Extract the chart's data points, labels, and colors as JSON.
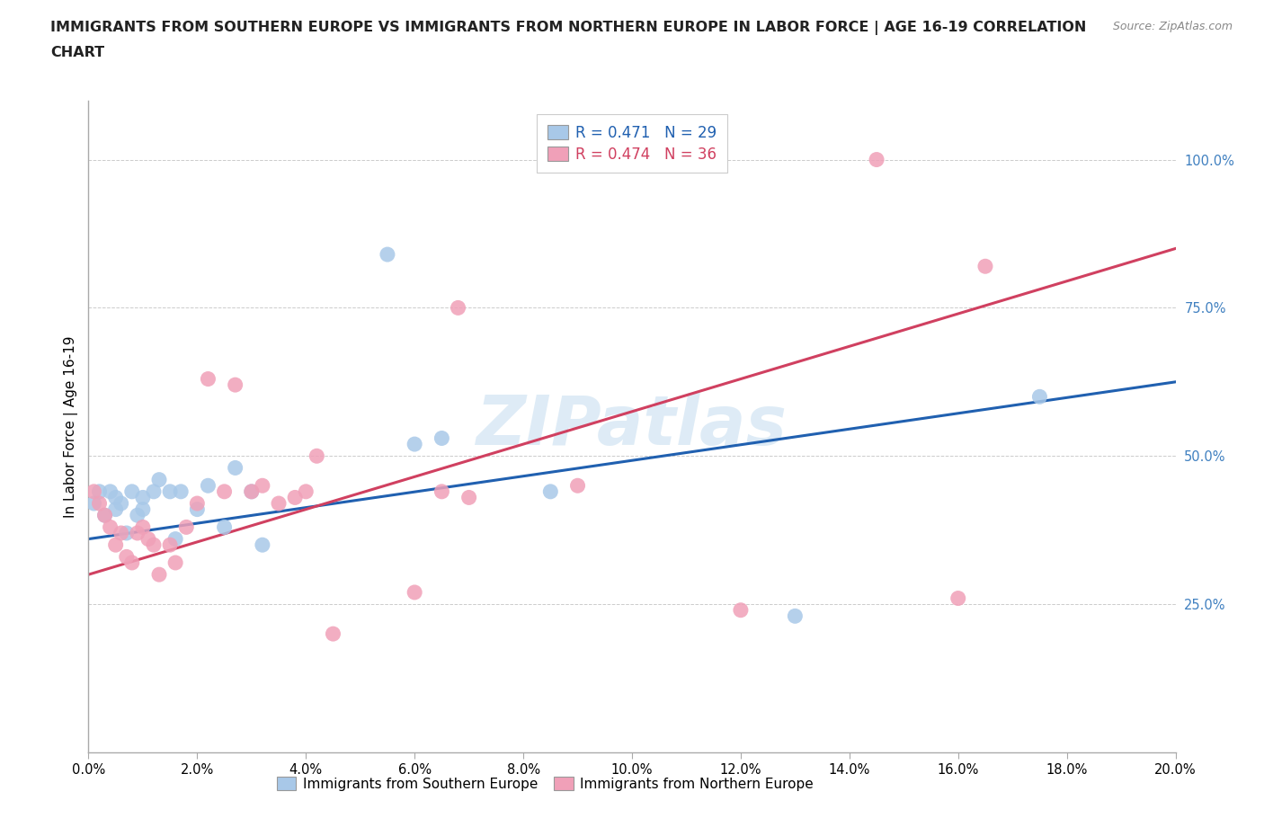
{
  "title_line1": "IMMIGRANTS FROM SOUTHERN EUROPE VS IMMIGRANTS FROM NORTHERN EUROPE IN LABOR FORCE | AGE 16-19 CORRELATION",
  "title_line2": "CHART",
  "source": "Source: ZipAtlas.com",
  "ylabel": "In Labor Force | Age 16-19",
  "xlim": [
    0.0,
    0.2
  ],
  "ylim": [
    0.0,
    1.1
  ],
  "xticks": [
    0.0,
    0.02,
    0.04,
    0.06,
    0.08,
    0.1,
    0.12,
    0.14,
    0.16,
    0.18,
    0.2
  ],
  "yticks": [
    0.25,
    0.5,
    0.75,
    1.0
  ],
  "blue_R": 0.471,
  "blue_N": 29,
  "pink_R": 0.474,
  "pink_N": 36,
  "blue_color": "#a8c8e8",
  "pink_color": "#f0a0b8",
  "blue_line_color": "#2060b0",
  "pink_line_color": "#d04060",
  "ytick_color": "#4080c0",
  "watermark_color": "#c8dff0",
  "blue_legend_label": "Immigrants from Southern Europe",
  "pink_legend_label": "Immigrants from Northern Europe",
  "blue_scatter_x": [
    0.001,
    0.002,
    0.003,
    0.004,
    0.005,
    0.005,
    0.006,
    0.007,
    0.008,
    0.009,
    0.01,
    0.01,
    0.012,
    0.013,
    0.015,
    0.016,
    0.017,
    0.02,
    0.022,
    0.025,
    0.027,
    0.03,
    0.032,
    0.055,
    0.06,
    0.065,
    0.085,
    0.13,
    0.175
  ],
  "blue_scatter_y": [
    0.42,
    0.44,
    0.4,
    0.44,
    0.41,
    0.43,
    0.42,
    0.37,
    0.44,
    0.4,
    0.43,
    0.41,
    0.44,
    0.46,
    0.44,
    0.36,
    0.44,
    0.41,
    0.45,
    0.38,
    0.48,
    0.44,
    0.35,
    0.84,
    0.52,
    0.53,
    0.44,
    0.23,
    0.6
  ],
  "pink_scatter_x": [
    0.001,
    0.002,
    0.003,
    0.004,
    0.005,
    0.006,
    0.007,
    0.008,
    0.009,
    0.01,
    0.011,
    0.012,
    0.013,
    0.015,
    0.016,
    0.018,
    0.02,
    0.022,
    0.025,
    0.027,
    0.03,
    0.032,
    0.035,
    0.038,
    0.04,
    0.042,
    0.045,
    0.06,
    0.065,
    0.068,
    0.07,
    0.09,
    0.12,
    0.145,
    0.16,
    0.165
  ],
  "pink_scatter_y": [
    0.44,
    0.42,
    0.4,
    0.38,
    0.35,
    0.37,
    0.33,
    0.32,
    0.37,
    0.38,
    0.36,
    0.35,
    0.3,
    0.35,
    0.32,
    0.38,
    0.42,
    0.63,
    0.44,
    0.62,
    0.44,
    0.45,
    0.42,
    0.43,
    0.44,
    0.5,
    0.2,
    0.27,
    0.44,
    0.75,
    0.43,
    0.45,
    0.24,
    1.0,
    0.26,
    0.82
  ],
  "blue_line_x0": 0.0,
  "blue_line_y0": 0.36,
  "blue_line_x1": 0.2,
  "blue_line_y1": 0.625,
  "pink_line_x0": 0.0,
  "pink_line_y0": 0.3,
  "pink_line_x1": 0.2,
  "pink_line_y1": 0.85
}
